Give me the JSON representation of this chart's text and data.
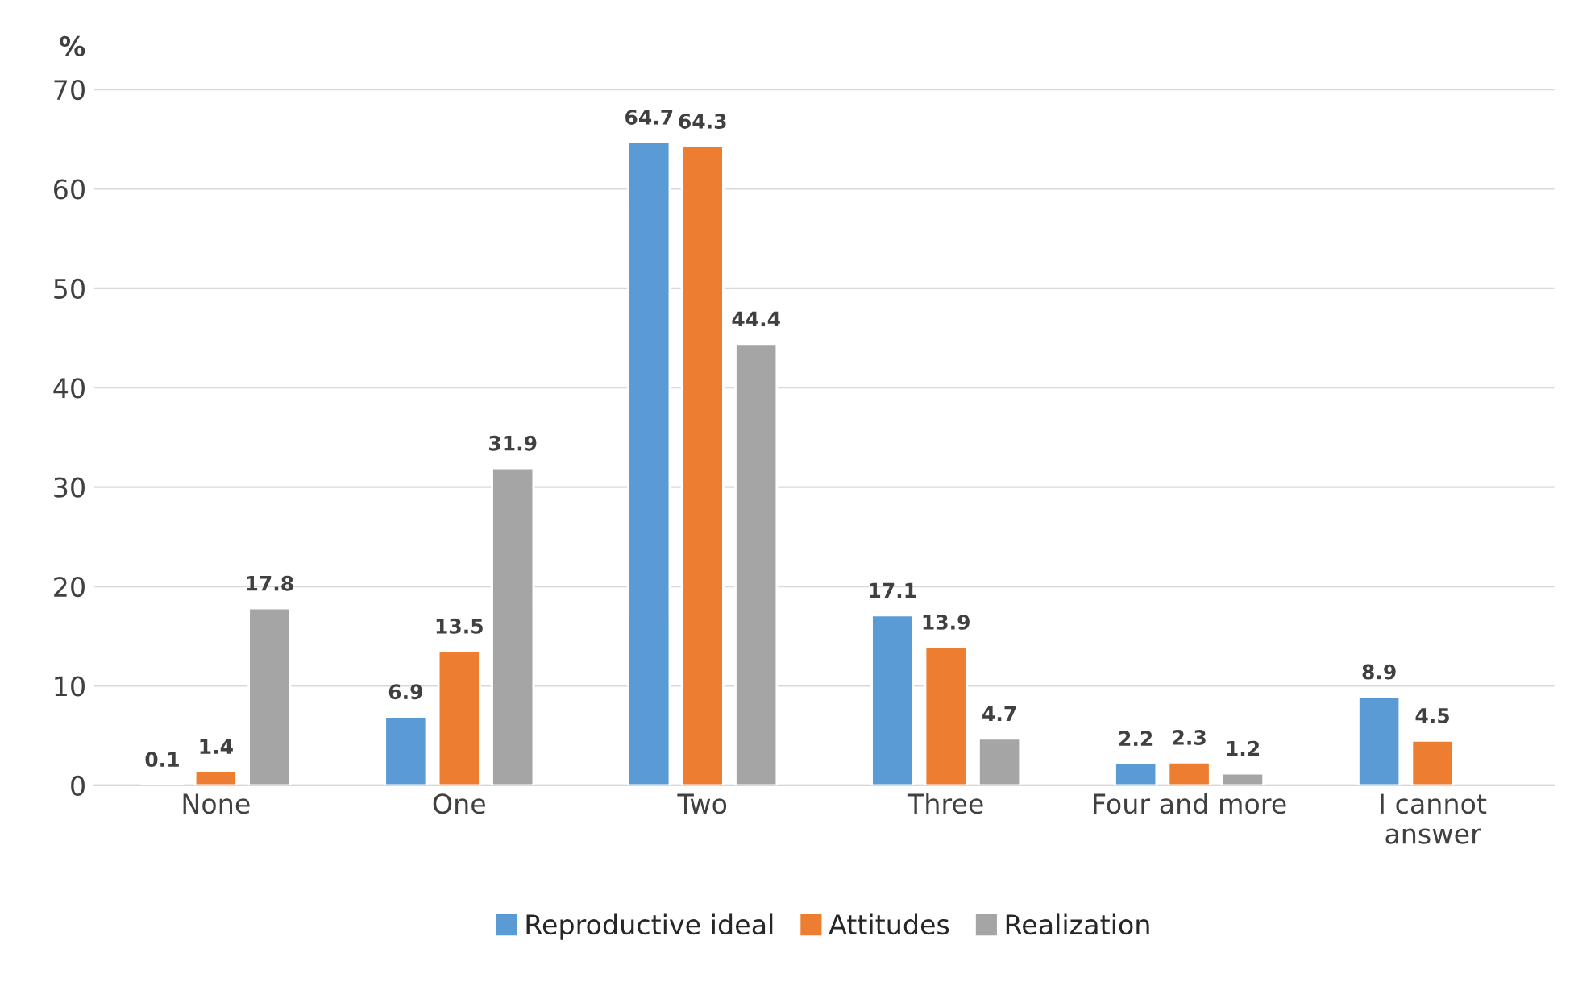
{
  "chart_data": {
    "type": "bar",
    "ylabel": "%",
    "categories": [
      "None",
      "One",
      "Two",
      "Three",
      "Four and more",
      "I cannot\nanswer"
    ],
    "series": [
      {
        "name": "Reproductive ideal",
        "color": "#5b9bd5",
        "values": [
          0.1,
          6.9,
          64.7,
          17.1,
          2.2,
          8.9
        ]
      },
      {
        "name": "Attitudes",
        "color": "#ed7d31",
        "values": [
          1.4,
          13.5,
          64.3,
          13.9,
          2.3,
          4.5
        ]
      },
      {
        "name": "Realization",
        "color": "#a5a5a5",
        "values": [
          17.8,
          31.9,
          44.4,
          4.7,
          1.2,
          null
        ]
      }
    ],
    "ylim": [
      0,
      70
    ],
    "yticks": [
      0,
      10,
      20,
      30,
      40,
      50,
      60,
      70
    ],
    "grid": "y",
    "legend": "bottom",
    "data_labels": true
  }
}
